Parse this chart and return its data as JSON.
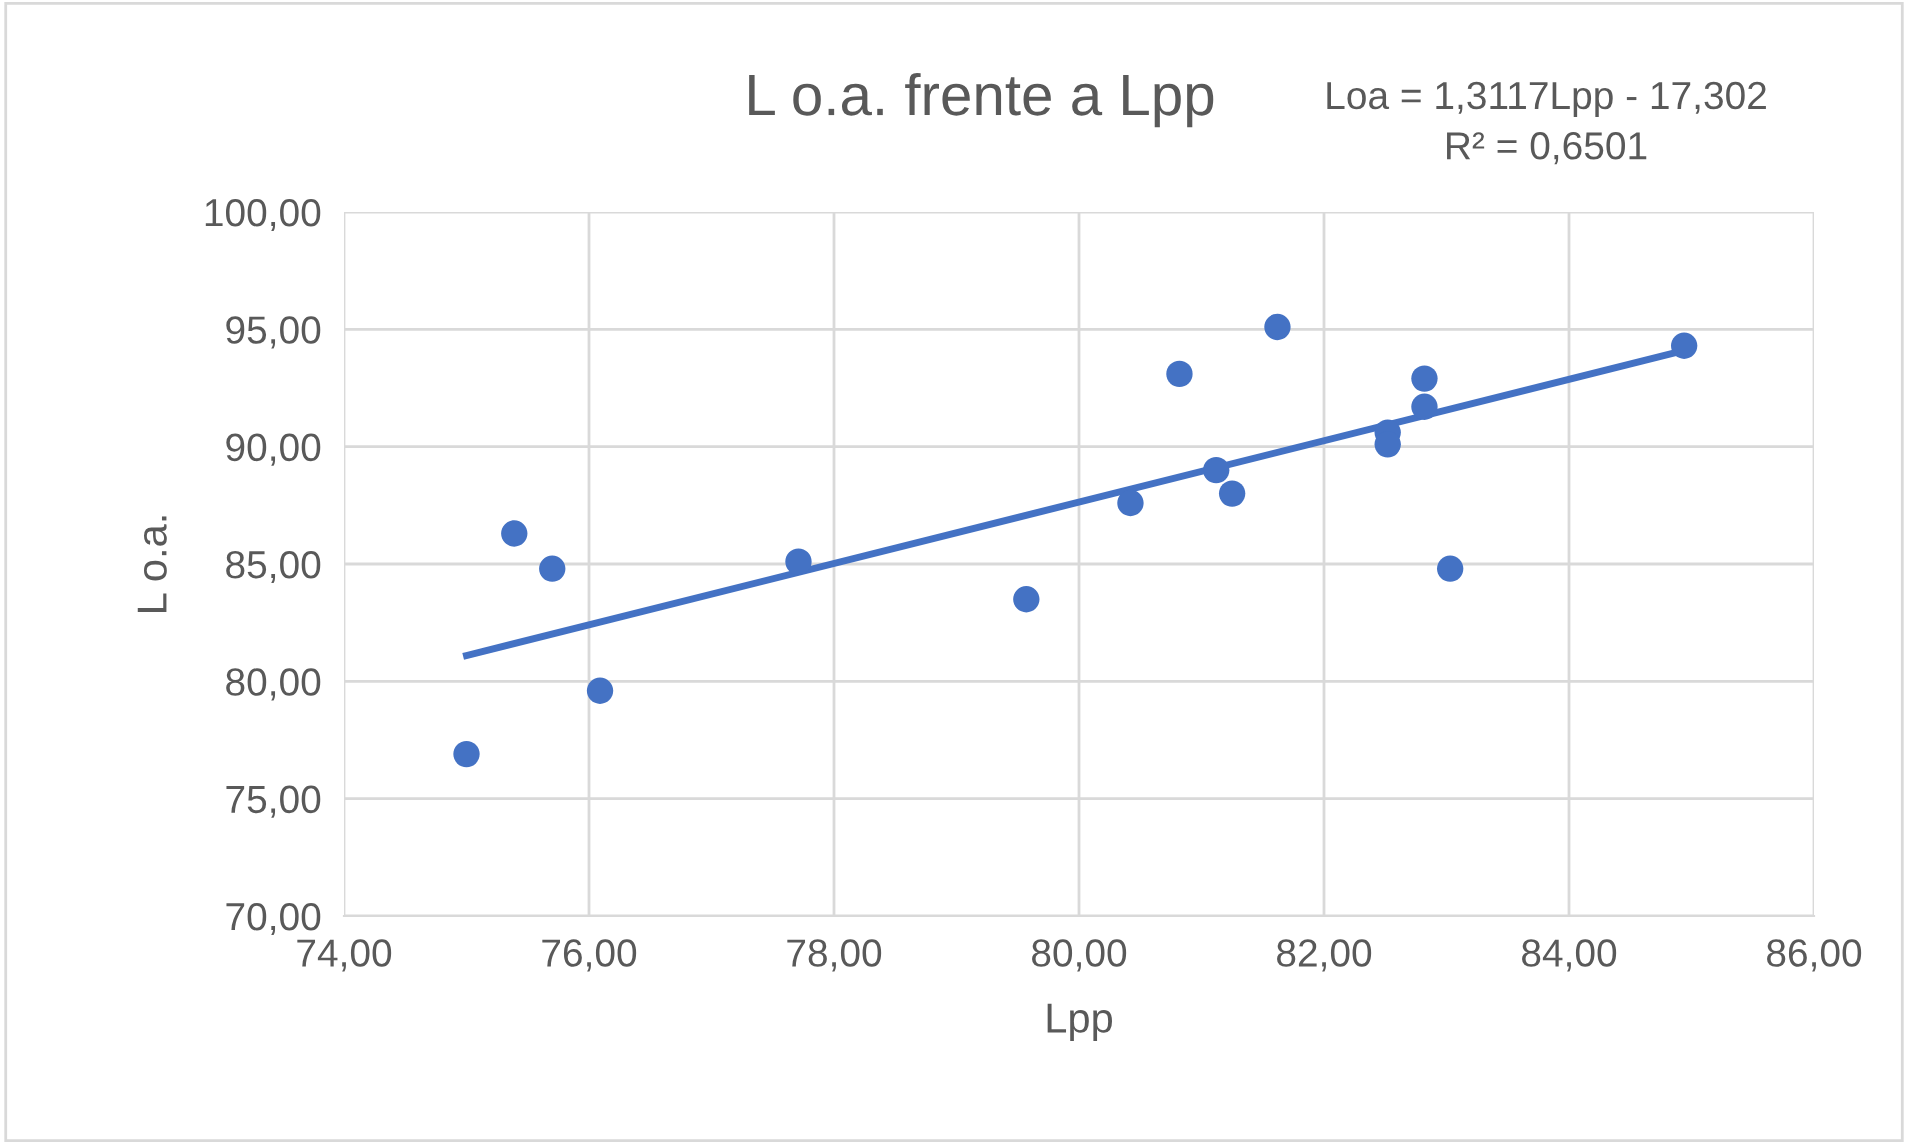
{
  "chart_data": {
    "type": "scatter",
    "title": "L o.a. frente a Lpp",
    "xlabel": "Lpp",
    "ylabel": "L o.a.",
    "annotations": [
      "Loa = 1,3117Lpp - 17,302\nR² = 0,6501"
    ],
    "series": [
      {
        "color": "#4472c4",
        "marker": "circle",
        "x": [
          75.0,
          75.39,
          75.7,
          76.09,
          77.71,
          79.57,
          80.42,
          80.82,
          81.12,
          81.25,
          81.62,
          82.52,
          82.52,
          82.82,
          82.82,
          83.03,
          84.94
        ],
        "values": [
          76.9,
          86.3,
          84.8,
          79.6,
          85.1,
          83.5,
          87.6,
          93.1,
          89.0,
          88.0,
          95.1,
          90.6,
          90.1,
          92.9,
          91.7,
          84.8,
          94.3
        ]
      },
      {
        "type": "line",
        "color": "#4472c4",
        "marker": "none",
        "line_style": "solid",
        "x": [
          75.0,
          84.94
        ],
        "values": [
          81.1,
          94.1
        ]
      }
    ],
    "xlim": [
      74,
      86
    ],
    "ylim": [
      70,
      100
    ],
    "xticks": [
      {
        "value": 74,
        "label": "74,00"
      },
      {
        "value": 76,
        "label": "76,00"
      },
      {
        "value": 78,
        "label": "78,00"
      },
      {
        "value": 80,
        "label": "80,00"
      },
      {
        "value": 82,
        "label": "82,00"
      },
      {
        "value": 84,
        "label": "84,00"
      },
      {
        "value": 86,
        "label": "86,00"
      }
    ],
    "yticks": [
      {
        "value": 70,
        "label": "70,00"
      },
      {
        "value": 75,
        "label": "75,00"
      },
      {
        "value": 80,
        "label": "80,00"
      },
      {
        "value": 85,
        "label": "85,00"
      },
      {
        "value": 90,
        "label": "90,00"
      },
      {
        "value": 95,
        "label": "95,00"
      },
      {
        "value": 100,
        "label": "100,00"
      }
    ],
    "grid": true,
    "legend": false
  }
}
